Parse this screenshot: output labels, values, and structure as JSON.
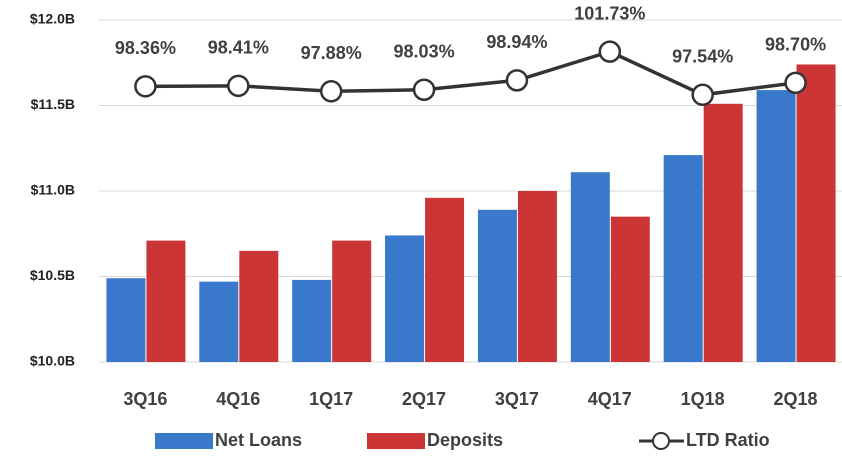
{
  "chart_data": {
    "type": "bar",
    "categories": [
      "3Q16",
      "4Q16",
      "1Q17",
      "2Q17",
      "3Q17",
      "4Q17",
      "1Q18",
      "2Q18"
    ],
    "series": [
      {
        "name": "Net Loans",
        "color": "#3a78cc",
        "values": [
          10.49,
          10.47,
          10.48,
          10.74,
          10.89,
          11.11,
          11.21,
          11.59
        ]
      },
      {
        "name": "Deposits",
        "color": "#cc3535",
        "values": [
          10.71,
          10.65,
          10.71,
          10.96,
          11.0,
          10.85,
          11.51,
          11.74
        ]
      },
      {
        "name": "LTD Ratio",
        "type": "line",
        "axis": "y2",
        "color": "#333333",
        "values": [
          98.36,
          98.41,
          97.88,
          98.03,
          98.94,
          101.73,
          97.54,
          98.7
        ],
        "value_labels": [
          "98.36%",
          "98.41%",
          "97.88%",
          "98.03%",
          "98.94%",
          "101.73%",
          "97.54%",
          "98.70%"
        ]
      }
    ],
    "ylim": [
      10,
      12
    ],
    "yticks": [
      {
        "value": 10,
        "label": "$10.0B"
      },
      {
        "value": 10.5,
        "label": "$10.5B"
      },
      {
        "value": 11,
        "label": "$11.0B"
      },
      {
        "value": 11.5,
        "label": "$11.5B"
      },
      {
        "value": 12,
        "label": "$12.0B"
      }
    ],
    "y2lim": [
      71.6,
      104.8
    ],
    "grid": true,
    "legend": "bottom"
  }
}
